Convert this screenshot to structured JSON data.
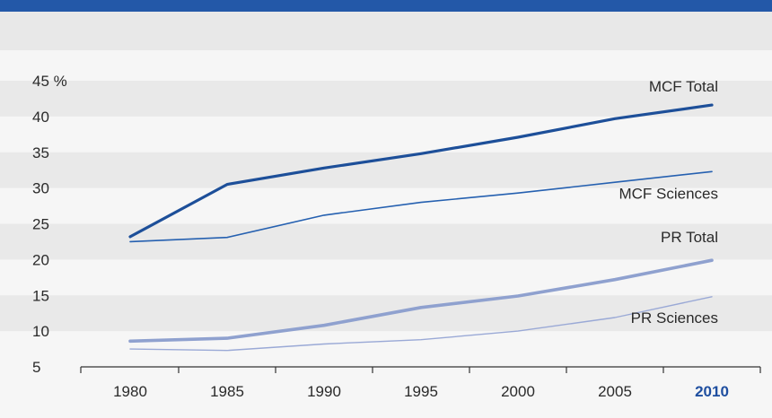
{
  "colors": {
    "header_bar": "#2358a8",
    "top_band": "#e8e8e8",
    "panel": "#f6f6f6",
    "grid_band": "#e9e9e9",
    "axis": "#333333",
    "mcf_total": "#1d4f99",
    "mcf_sciences": "#2560b0",
    "pr_total": "#8fa1cf",
    "pr_sciences": "#9aa9d6",
    "highlight_tick": "#1f4fa0"
  },
  "chart_data": {
    "type": "line",
    "x": [
      1980,
      1985,
      1990,
      1995,
      2000,
      2005,
      2010
    ],
    "xticks": [
      "1980",
      "1985",
      "1990",
      "1995",
      "2000",
      "2005",
      "2010"
    ],
    "highlight_xtick": "2010",
    "yticks": [
      "45 %",
      "40",
      "35",
      "30",
      "25",
      "20",
      "15",
      "10",
      "5"
    ],
    "ylim": [
      5,
      45
    ],
    "grid": "alternating bands",
    "legend": "inline labels",
    "series": [
      {
        "name": "MCF Total",
        "values": [
          23.2,
          30.5,
          32.8,
          34.8,
          37.1,
          39.7,
          41.6
        ]
      },
      {
        "name": "MCF Sciences",
        "values": [
          22.5,
          23.1,
          26.2,
          28.0,
          29.3,
          30.8,
          32.3
        ]
      },
      {
        "name": "PR Total",
        "values": [
          8.6,
          9.0,
          10.8,
          13.3,
          14.9,
          17.2,
          19.9
        ]
      },
      {
        "name": "PR Sciences",
        "values": [
          7.5,
          7.3,
          8.2,
          8.8,
          10.0,
          11.9,
          14.8
        ]
      }
    ]
  }
}
